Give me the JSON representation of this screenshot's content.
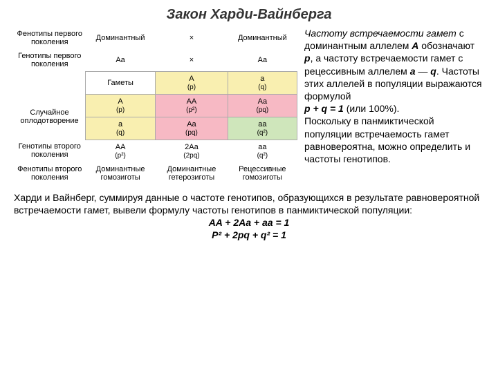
{
  "title": "Закон Харди-Вайнберга",
  "rows": {
    "r1_label": "Фенотипы первого поколения",
    "r1_a": "Доминантный",
    "r1_x": "×",
    "r1_b": "Доминантный",
    "r2_label": "Генотипы первого поколения",
    "r2_a": "Aa",
    "r2_x": "×",
    "r2_b": "Aa",
    "r3_gametes": "Гаметы",
    "r3_A": "A",
    "r3_Ap": "(p)",
    "r3_a": "a",
    "r3_ap": "(q)",
    "r4_label": "Случайное оплодотворение",
    "r4_left_A": "A",
    "r4_left_Ap": "(p)",
    "r4_AA": "AA",
    "r4_AAp": "(p²)",
    "r4_Aa": "Aa",
    "r4_Aap": "(pq)",
    "r5_left_a": "a",
    "r5_left_ap": "(q)",
    "r5_Aa": "Aa",
    "r5_Aap": "(pq)",
    "r5_aa": "aa",
    "r5_aap": "(q²)",
    "r6_label": "Генотипы второго поколения",
    "r6_a": "AA",
    "r6_ap": "(p²)",
    "r6_b": "2Aa",
    "r6_bp": "(2pq)",
    "r6_c": "aa",
    "r6_cp": "(q²)",
    "r7_label": "Фенотипы второго поколения",
    "r7_a": "Доминантные гомозиготы",
    "r7_b": "Доминантные гетерозиготы",
    "r7_c": "Рецессивные гомозиготы"
  },
  "right": {
    "p1a": "Частоту встречаемости гамет",
    "p1b": " с доминантным аллелем ",
    "p1c": "A",
    "p1d": " обозначают ",
    "p1e": "p",
    "p1f": ", а частоту встречаемости гамет с рецессивным аллелем ",
    "p1g": "a",
    "p1h": " — ",
    "p1i": "q",
    "p1j": ". Частоты этих аллелей в популяции выражаются формулой",
    "formula1": "p + q = 1",
    "formula1b": " (или 100%).",
    "p2": "Поскольку в панмиктической популяции встречаемость гамет равновероятна, можно определить и частоты генотипов."
  },
  "bottom": {
    "t1": "Харди и Вайнберг, суммируя данные о частоте генотипов, образующихся в результате равновероятной встречаемости гамет, вывели формулу частоты генотипов в панмиктической популяции:",
    "f1": "AA + 2Aa + aa = 1",
    "f2": "P² + 2pq + q² = 1"
  }
}
